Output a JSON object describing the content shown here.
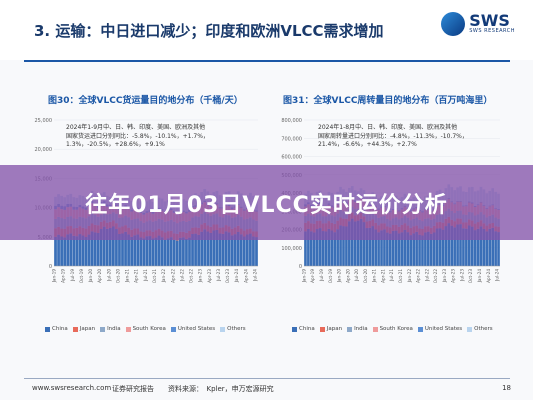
{
  "header": {
    "title": "3. 运输：中日进口减少；印度和欧洲VLCC需求增加",
    "logo_text": "SWS",
    "logo_sub": "SWS RESEARCH"
  },
  "banner": {
    "text": "往年01月03日VLCC实时运价分析"
  },
  "footer": {
    "website": "www.swsresearch.com",
    "institute": "证券研究报告",
    "source": "资料来源：　Kpler，申万宏源研究",
    "page": "18"
  },
  "colors": {
    "china": "#3a6fb7",
    "japan": "#e86a5a",
    "india": "#8ea9c9",
    "south_korea": "#ef9b9b",
    "united_states": "#5b8fd4",
    "others": "#b9d4ee"
  },
  "charts": [
    {
      "title": "图30：全球VLCC货运量目的地分布（千桶/天）",
      "annotation": "2024年1-9月中、日、韩、印度、美国、欧洲及其他\n国家货运进口分别同比：-5.8%，-10.1%，+1.7%，\n1.3%，-20.5%，+28.6%，+9.1%",
      "y_ticks": [
        "25,000",
        "20,000",
        "15,000",
        "10,000",
        "5,000",
        "0"
      ],
      "x_ticks": [
        "Jan-19",
        "Apr-19",
        "Jul-19",
        "Oct-19",
        "Jan-20",
        "Apr-20",
        "Jul-20",
        "Oct-20",
        "Jan-21",
        "Apr-21",
        "Jul-21",
        "Oct-21",
        "Jan-22",
        "Apr-22",
        "Jul-22",
        "Oct-22",
        "Jan-23",
        "Apr-23",
        "Jul-23",
        "Oct-23",
        "Jan-24",
        "Apr-24",
        "Jul-24"
      ],
      "legend": [
        "China",
        "Japan",
        "India",
        "South Korea",
        "United States",
        "Others"
      ]
    },
    {
      "title": "图31：全球VLCC周转量目的地分布（百万吨海里）",
      "annotation": "2024年1-8月中、日、韩、印度、美国、欧洲及其他\n国家周转量进口分别同比：-4.8%，-11.3%，-10.7%，\n21.4%，-6.6%，+44.3%，+2.7%",
      "y_ticks": [
        "800,000",
        "700,000",
        "600,000",
        "500,000",
        "400,000",
        "300,000",
        "200,000",
        "100,000",
        "0"
      ],
      "x_ticks": [
        "Jan-19",
        "Apr-19",
        "Jul-19",
        "Oct-19",
        "Jan-20",
        "Apr-20",
        "Jul-20",
        "Oct-20",
        "Jan-21",
        "Apr-21",
        "Jul-21",
        "Oct-21",
        "Jan-22",
        "Apr-22",
        "Jul-22",
        "Oct-22",
        "Jan-23",
        "Apr-23",
        "Jul-23",
        "Oct-23",
        "Jan-24",
        "Apr-24",
        "Jul-24"
      ],
      "legend": [
        "China",
        "Japan",
        "India",
        "South Korea",
        "United States",
        "Others"
      ]
    }
  ],
  "chart_data": [
    {
      "type": "bar",
      "title": "图30：全球VLCC货运量目的地分布（千桶/天）",
      "ylim": [
        0,
        25000
      ],
      "categories": [
        "Jan-19",
        "Apr-19",
        "Jul-19",
        "Oct-19",
        "Jan-20",
        "Apr-20",
        "Jul-20",
        "Oct-20",
        "Jan-21",
        "Apr-21",
        "Jul-21",
        "Oct-21",
        "Jan-22",
        "Apr-22",
        "Jul-22",
        "Oct-22",
        "Jan-23",
        "Apr-23",
        "Jul-23",
        "Oct-23",
        "Jan-24",
        "Apr-24",
        "Jul-24"
      ],
      "series": [
        {
          "name": "China",
          "values": [
            5000,
            5200,
            5400,
            5100,
            5600,
            6200,
            6800,
            5800,
            5400,
            5100,
            4900,
            5000,
            4800,
            4600,
            4700,
            5200,
            5900,
            6000,
            5800,
            5600,
            5500,
            5300,
            5200
          ]
        },
        {
          "name": "Japan",
          "values": [
            1400,
            1400,
            1300,
            1400,
            1400,
            1200,
            1000,
            1100,
            1200,
            1100,
            1000,
            1200,
            1200,
            1100,
            1000,
            1100,
            1200,
            1000,
            1000,
            1100,
            1100,
            900,
            900
          ]
        },
        {
          "name": "India",
          "values": [
            1700,
            1700,
            1600,
            1700,
            1800,
            1300,
            1400,
            1600,
            1700,
            1700,
            1600,
            1700,
            1800,
            1900,
            1800,
            1800,
            1900,
            1900,
            1800,
            1800,
            1900,
            1900,
            1900
          ]
        },
        {
          "name": "South Korea",
          "values": [
            1600,
            1600,
            1600,
            1500,
            1600,
            1500,
            1300,
            1400,
            1500,
            1500,
            1400,
            1500,
            1600,
            1600,
            1500,
            1600,
            1600,
            1600,
            1500,
            1600,
            1600,
            1600,
            1600
          ]
        },
        {
          "name": "United States",
          "values": [
            600,
            600,
            500,
            400,
            400,
            600,
            300,
            200,
            300,
            300,
            300,
            300,
            300,
            300,
            300,
            300,
            300,
            200,
            200,
            300,
            200,
            200,
            200
          ]
        },
        {
          "name": "Others",
          "values": [
            1600,
            1600,
            1600,
            1700,
            1700,
            1500,
            1400,
            1500,
            1500,
            1600,
            1700,
            1700,
            1700,
            1800,
            1800,
            1900,
            1900,
            2000,
            2000,
            2100,
            2100,
            2200,
            2300
          ]
        }
      ]
    },
    {
      "type": "bar",
      "title": "图31：全球VLCC周转量目的地分布（百万吨海里）",
      "ylim": [
        0,
        800000
      ],
      "categories": [
        "Jan-19",
        "Apr-19",
        "Jul-19",
        "Oct-19",
        "Jan-20",
        "Apr-20",
        "Jul-20",
        "Oct-20",
        "Jan-21",
        "Apr-21",
        "Jul-21",
        "Oct-21",
        "Jan-22",
        "Apr-22",
        "Jul-22",
        "Oct-22",
        "Jan-23",
        "Apr-23",
        "Jul-23",
        "Oct-23",
        "Jan-24",
        "Apr-24",
        "Jul-24"
      ],
      "series": [
        {
          "name": "China",
          "values": [
            190000,
            195000,
            200000,
            190000,
            210000,
            240000,
            260000,
            220000,
            200000,
            190000,
            185000,
            190000,
            180000,
            175000,
            180000,
            195000,
            220000,
            225000,
            215000,
            210000,
            205000,
            200000,
            195000
          ]
        },
        {
          "name": "Japan",
          "values": [
            45000,
            45000,
            42000,
            44000,
            45000,
            38000,
            32000,
            35000,
            38000,
            35000,
            32000,
            38000,
            38000,
            35000,
            32000,
            35000,
            38000,
            32000,
            32000,
            35000,
            35000,
            28000,
            28000
          ]
        },
        {
          "name": "India",
          "values": [
            40000,
            40000,
            38000,
            40000,
            42000,
            30000,
            33000,
            38000,
            40000,
            40000,
            38000,
            40000,
            42000,
            45000,
            42000,
            42000,
            45000,
            45000,
            42000,
            42000,
            45000,
            45000,
            45000
          ]
        },
        {
          "name": "South Korea",
          "values": [
            50000,
            50000,
            50000,
            47000,
            50000,
            47000,
            40000,
            44000,
            47000,
            47000,
            44000,
            47000,
            50000,
            50000,
            47000,
            50000,
            50000,
            50000,
            47000,
            50000,
            50000,
            50000,
            50000
          ]
        },
        {
          "name": "United States",
          "values": [
            12000,
            12000,
            10000,
            8000,
            8000,
            12000,
            6000,
            4000,
            6000,
            6000,
            6000,
            6000,
            6000,
            6000,
            6000,
            6000,
            6000,
            4000,
            4000,
            6000,
            4000,
            4000,
            4000
          ]
        },
        {
          "name": "Others",
          "values": [
            60000,
            60000,
            60000,
            64000,
            64000,
            56000,
            52000,
            56000,
            56000,
            60000,
            64000,
            64000,
            64000,
            68000,
            68000,
            72000,
            72000,
            76000,
            76000,
            80000,
            80000,
            84000,
            88000
          ]
        }
      ]
    }
  ]
}
